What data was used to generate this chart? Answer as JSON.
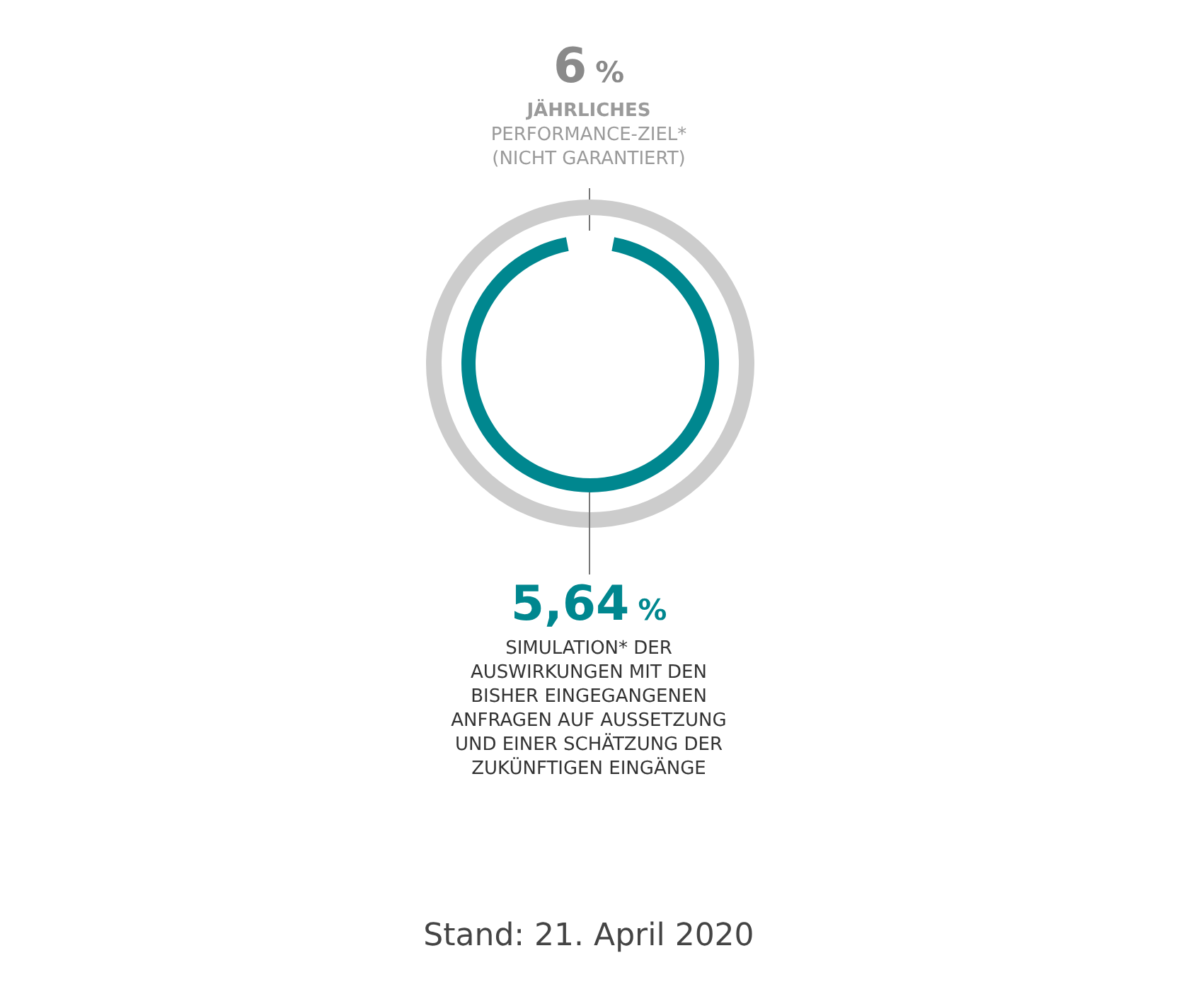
{
  "chart_data": {
    "type": "other",
    "categories": [
      "JÄHRLICHES\nPERFORMANCE-ZIEL*\n(NICHT GARANTIERT)",
      "SIMULATION* DER\nAUSWIRKUNGEN MIT DEN\nBISHER EINGEGANGENEN\nANFRAGEN AUF AUSSETZUNG\nUND EINER SCHÄTZUNG DER\nZUKÜNFTIGEN EINGÄNGE"
    ],
    "values": [
      6,
      5.64
    ],
    "value_labels": [
      "6 %",
      "5,64 %"
    ],
    "colors": [
      "#cccccc",
      "#00878f"
    ],
    "annotations": [
      "Stand: 21. April 2020"
    ]
  }
}
